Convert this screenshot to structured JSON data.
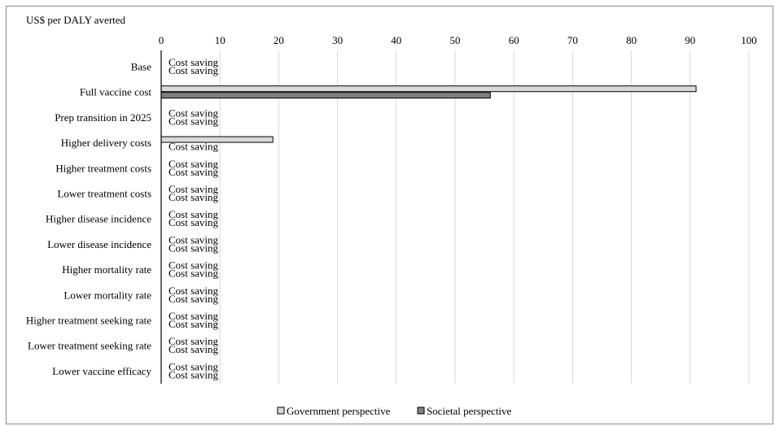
{
  "chart_data": {
    "type": "bar",
    "orientation": "horizontal",
    "ylabel": "US$ per DALY averted",
    "xlim": [
      0,
      100
    ],
    "xticks": [
      0,
      10,
      20,
      30,
      40,
      50,
      60,
      70,
      80,
      90,
      100
    ],
    "grid": true,
    "legend_position": "bottom",
    "categories": [
      "Base",
      "Full vaccine cost",
      "Prep transition in 2025",
      "Higher delivery costs",
      "Higher treatment costs",
      "Lower treatment costs",
      "Higher disease incidence",
      "Lower disease incidence",
      "Higher mortality rate",
      "Lower mortality rate",
      "Higher treatment seeking rate",
      "Lower treatment seeking rate",
      "Lower vaccine efficacy"
    ],
    "series": [
      {
        "name": "Government perspective",
        "color": "#d9d9d9",
        "values": [
          0,
          91,
          0,
          19,
          0,
          0,
          0,
          0,
          0,
          0,
          0,
          0,
          0
        ],
        "labels": [
          "Cost saving",
          "",
          "Cost saving",
          "",
          "Cost saving",
          "Cost saving",
          "Cost saving",
          "Cost saving",
          "Cost saving",
          "Cost saving",
          "Cost saving",
          "Cost saving",
          "Cost saving"
        ]
      },
      {
        "name": "Societal perspective",
        "color": "#808080",
        "values": [
          0,
          56,
          0,
          0,
          0,
          0,
          0,
          0,
          0,
          0,
          0,
          0,
          0
        ],
        "labels": [
          "Cost saving",
          "",
          "Cost saving",
          "Cost saving",
          "Cost saving",
          "Cost saving",
          "Cost saving",
          "Cost saving",
          "Cost saving",
          "Cost saving",
          "Cost saving",
          "Cost saving",
          "Cost saving"
        ]
      }
    ]
  }
}
